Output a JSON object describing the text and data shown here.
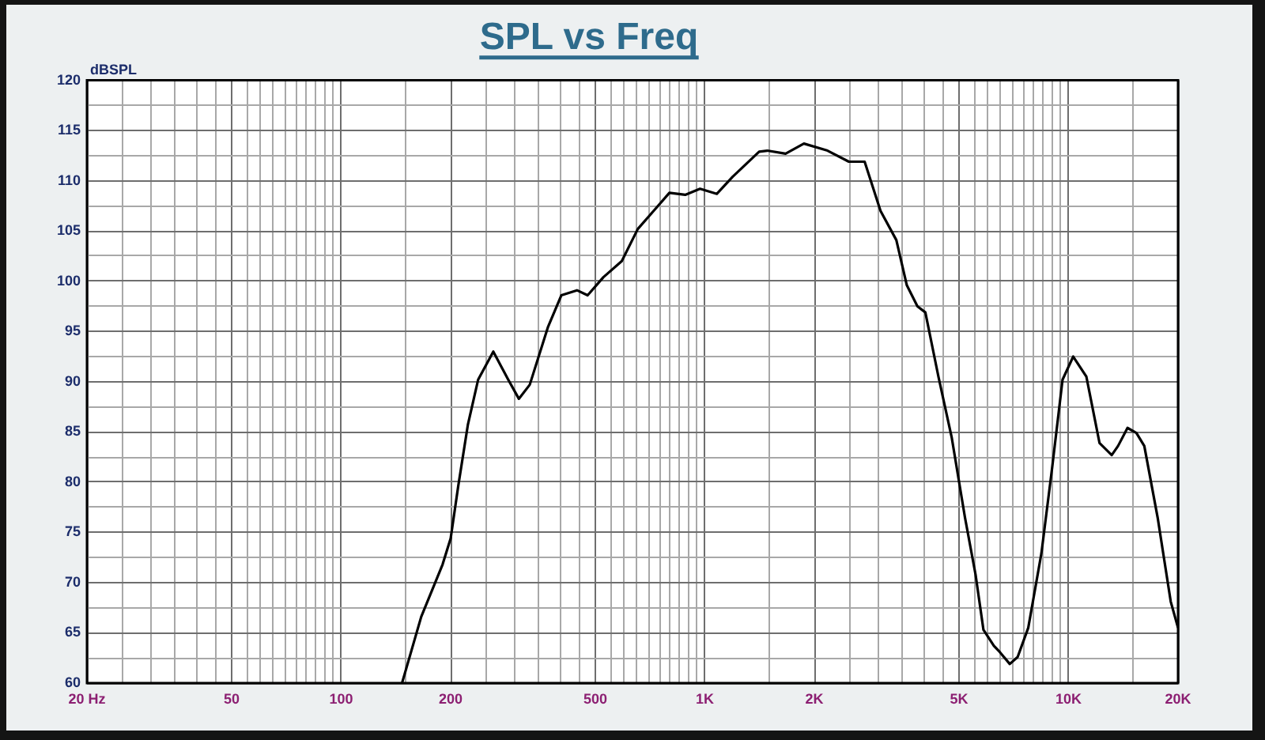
{
  "chart_data": {
    "type": "line",
    "title": "SPL vs Freq",
    "ylabel": "dBSPL",
    "log": "x",
    "grid": true,
    "marker": "none",
    "xlim": [
      20,
      20000
    ],
    "ylim": [
      60,
      120
    ],
    "xticks": [
      {
        "value": 20,
        "label": "20 Hz"
      },
      {
        "value": 25,
        "label": null
      },
      {
        "value": 30,
        "label": null
      },
      {
        "value": 35,
        "label": null
      },
      {
        "value": 40,
        "label": null
      },
      {
        "value": 45,
        "label": null
      },
      50,
      {
        "value": 55,
        "label": null
      },
      {
        "value": 60,
        "label": null
      },
      {
        "value": 65,
        "label": null
      },
      {
        "value": 70,
        "label": null
      },
      {
        "value": 75,
        "label": null
      },
      {
        "value": 80,
        "label": null
      },
      {
        "value": 85,
        "label": null
      },
      {
        "value": 90,
        "label": null
      },
      {
        "value": 95,
        "label": null
      },
      100,
      {
        "value": 150,
        "label": null
      },
      200,
      {
        "value": 250,
        "label": null
      },
      {
        "value": 300,
        "label": null
      },
      {
        "value": 350,
        "label": null
      },
      {
        "value": 400,
        "label": null
      },
      {
        "value": 450,
        "label": null
      },
      500,
      {
        "value": 550,
        "label": null
      },
      {
        "value": 600,
        "label": null
      },
      {
        "value": 650,
        "label": null
      },
      {
        "value": 700,
        "label": null
      },
      {
        "value": 750,
        "label": null
      },
      {
        "value": 800,
        "label": null
      },
      {
        "value": 850,
        "label": null
      },
      {
        "value": 900,
        "label": null
      },
      {
        "value": 950,
        "label": null
      },
      {
        "value": 1000,
        "label": "1K"
      },
      {
        "value": 1500,
        "label": null
      },
      {
        "value": 2000,
        "label": "2K"
      },
      {
        "value": 2500,
        "label": null
      },
      {
        "value": 3000,
        "label": null
      },
      {
        "value": 3500,
        "label": null
      },
      {
        "value": 4000,
        "label": null
      },
      {
        "value": 4500,
        "label": null
      },
      {
        "value": 5000,
        "label": "5K"
      },
      {
        "value": 5500,
        "label": null
      },
      {
        "value": 6000,
        "label": null
      },
      {
        "value": 6500,
        "label": null
      },
      {
        "value": 7000,
        "label": null
      },
      {
        "value": 7500,
        "label": null
      },
      {
        "value": 8000,
        "label": null
      },
      {
        "value": 8500,
        "label": null
      },
      {
        "value": 9000,
        "label": null
      },
      {
        "value": 9500,
        "label": null
      },
      {
        "value": 10000,
        "label": "10K"
      },
      {
        "value": 15000,
        "label": null
      },
      {
        "value": 20000,
        "label": "20K"
      }
    ],
    "yticks": [
      60,
      {
        "value": 62.5,
        "label": null
      },
      65,
      {
        "value": 67.5,
        "label": null
      },
      70,
      {
        "value": 72.5,
        "label": null
      },
      75,
      {
        "value": 77.5,
        "label": null
      },
      80,
      {
        "value": 82.5,
        "label": null
      },
      85,
      {
        "value": 87.5,
        "label": null
      },
      90,
      {
        "value": 92.5,
        "label": null
      },
      95,
      {
        "value": 97.5,
        "label": null
      },
      100,
      {
        "value": 102.5,
        "label": null
      },
      105,
      {
        "value": 107.5,
        "label": null
      },
      110,
      {
        "value": 112.5,
        "label": null
      },
      115,
      {
        "value": 117.5,
        "label": null
      },
      120
    ],
    "x": [
      147,
      166,
      190,
      200,
      210,
      223,
      238,
      262,
      288,
      308,
      330,
      370,
      403,
      445,
      476,
      526,
      591,
      654,
      723,
      799,
      883,
      970,
      1079,
      1192,
      1410,
      1485,
      1667,
      1872,
      2175,
      2488,
      2750,
      3041,
      3361,
      3592,
      3842,
      4039,
      4388,
      4775,
      5189,
      5550,
      5835,
      6233,
      6430,
      6892,
      7245,
      7748,
      8420,
      9004,
      9627,
      10300,
      11195,
      12165,
      13143,
      13680,
      14524,
      15365,
      16155,
      17574,
      19100,
      20000
    ],
    "series": [
      {
        "color": "#000000",
        "values": [
          60,
          66.6,
          71.8,
          74.4,
          79.7,
          85.7,
          90.2,
          93,
          90.2,
          88.3,
          89.7,
          95.4,
          98.6,
          99.1,
          98.6,
          100.4,
          102,
          105.2,
          107,
          108.8,
          108.6,
          109.2,
          108.7,
          110.4,
          112.9,
          113,
          112.7,
          113.7,
          113,
          111.9,
          111.9,
          107,
          104.1,
          99.6,
          97.5,
          96.9,
          90.5,
          84.4,
          76.5,
          70.8,
          65.3,
          63.7,
          63.2,
          61.9,
          62.6,
          65.5,
          72.9,
          81.3,
          90.2,
          92.5,
          90.5,
          83.9,
          82.7,
          83.6,
          85.4,
          84.9,
          83.6,
          76.5,
          68.1,
          65.5
        ]
      }
    ]
  }
}
